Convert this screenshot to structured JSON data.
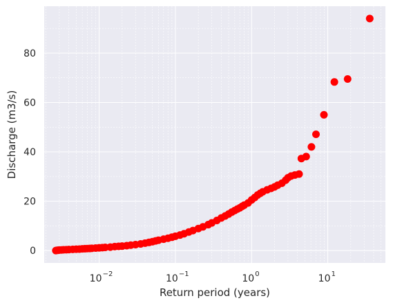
{
  "chart_data": {
    "type": "scatter",
    "title": "",
    "xlabel": "Return period (years)",
    "ylabel": "Discharge (m3/s)",
    "xscale": "log",
    "xlim": [
      0.0019,
      57
    ],
    "ylim": [
      -5,
      99
    ],
    "grid": true,
    "marker_color": "#ff0000",
    "plot_background": "#eaeaf2",
    "x_ticks": [
      {
        "value": 0.01,
        "base": "10",
        "exp": "−2"
      },
      {
        "value": 0.1,
        "base": "10",
        "exp": "−1"
      },
      {
        "value": 1,
        "base": "10",
        "exp": "0"
      },
      {
        "value": 10,
        "base": "10",
        "exp": "1"
      }
    ],
    "y_ticks": [
      {
        "value": 0,
        "label": "0"
      },
      {
        "value": 20,
        "label": "20"
      },
      {
        "value": 40,
        "label": "40"
      },
      {
        "value": 60,
        "label": "60"
      },
      {
        "value": 80,
        "label": "80"
      }
    ],
    "points": [
      [
        0.0027,
        0.0
      ],
      [
        0.0028,
        0.1
      ],
      [
        0.0029,
        0.15
      ],
      [
        0.003,
        0.2
      ],
      [
        0.0032,
        0.25
      ],
      [
        0.0034,
        0.3
      ],
      [
        0.0037,
        0.35
      ],
      [
        0.004,
        0.4
      ],
      [
        0.0045,
        0.5
      ],
      [
        0.005,
        0.55
      ],
      [
        0.0055,
        0.6
      ],
      [
        0.006,
        0.7
      ],
      [
        0.0065,
        0.75
      ],
      [
        0.007,
        0.8
      ],
      [
        0.0075,
        0.85
      ],
      [
        0.008,
        0.9
      ],
      [
        0.009,
        1.0
      ],
      [
        0.01,
        1.1
      ],
      [
        0.011,
        1.2
      ],
      [
        0.012,
        1.3
      ],
      [
        0.014,
        1.4
      ],
      [
        0.016,
        1.6
      ],
      [
        0.018,
        1.7
      ],
      [
        0.02,
        1.8
      ],
      [
        0.023,
        2.0
      ],
      [
        0.026,
        2.2
      ],
      [
        0.03,
        2.4
      ],
      [
        0.035,
        2.7
      ],
      [
        0.04,
        3.0
      ],
      [
        0.045,
        3.3
      ],
      [
        0.05,
        3.6
      ],
      [
        0.055,
        3.9
      ],
      [
        0.06,
        4.2
      ],
      [
        0.07,
        4.6
      ],
      [
        0.08,
        5.0
      ],
      [
        0.09,
        5.4
      ],
      [
        0.1,
        5.8
      ],
      [
        0.115,
        6.3
      ],
      [
        0.13,
        6.8
      ],
      [
        0.15,
        7.5
      ],
      [
        0.17,
        8.1
      ],
      [
        0.2,
        8.9
      ],
      [
        0.23,
        9.6
      ],
      [
        0.27,
        10.5
      ],
      [
        0.3,
        11.2
      ],
      [
        0.35,
        12.2
      ],
      [
        0.4,
        13.2
      ],
      [
        0.45,
        14.0
      ],
      [
        0.5,
        14.8
      ],
      [
        0.55,
        15.6
      ],
      [
        0.6,
        16.2
      ],
      [
        0.65,
        16.8
      ],
      [
        0.7,
        17.3
      ],
      [
        0.75,
        17.9
      ],
      [
        0.8,
        18.4
      ],
      [
        0.9,
        19.3
      ],
      [
        1.0,
        20.5
      ],
      [
        1.1,
        21.5
      ],
      [
        1.2,
        22.5
      ],
      [
        1.3,
        23.2
      ],
      [
        1.4,
        23.8
      ],
      [
        1.6,
        24.6
      ],
      [
        1.8,
        25.2
      ],
      [
        2.0,
        25.8
      ],
      [
        2.2,
        26.5
      ],
      [
        2.5,
        27.3
      ],
      [
        2.8,
        28.5
      ],
      [
        3.0,
        29.5
      ],
      [
        3.3,
        30.2
      ],
      [
        3.7,
        30.6
      ],
      [
        4.2,
        31.0
      ],
      [
        4.5,
        37.3
      ],
      [
        5.2,
        38.1
      ],
      [
        6.1,
        42.0
      ],
      [
        7.0,
        47.1
      ],
      [
        8.9,
        55.0
      ],
      [
        12.2,
        68.3
      ],
      [
        18.2,
        69.5
      ],
      [
        35.5,
        94.0
      ]
    ]
  }
}
